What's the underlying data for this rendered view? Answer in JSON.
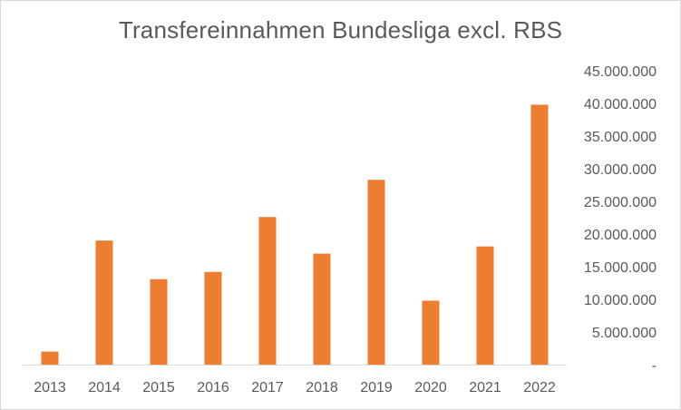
{
  "chart_data": {
    "type": "bar",
    "title": "Transfereinnahmen  Bundesliga excl. RBS",
    "categories": [
      "2013",
      "2014",
      "2015",
      "2016",
      "2017",
      "2018",
      "2019",
      "2020",
      "2021",
      "2022"
    ],
    "values": [
      2000000,
      19000000,
      13100000,
      14200000,
      22600000,
      17000000,
      28300000,
      9800000,
      18100000,
      39800000
    ],
    "ylim": [
      0,
      45000000
    ],
    "y_ticks": [
      0,
      5000000,
      10000000,
      15000000,
      20000000,
      25000000,
      30000000,
      35000000,
      40000000,
      45000000
    ],
    "y_tick_labels": [
      "-",
      "5.000.000",
      "10.000.000",
      "15.000.000",
      "20.000.000",
      "25.000.000",
      "30.000.000",
      "35.000.000",
      "40.000.000",
      "45.000.000"
    ],
    "y_axis_position": "right",
    "grid": false,
    "legend": false,
    "bar_color": "#ed7d31",
    "axis_color": "#d9d9d9",
    "text_color": "#595959"
  }
}
